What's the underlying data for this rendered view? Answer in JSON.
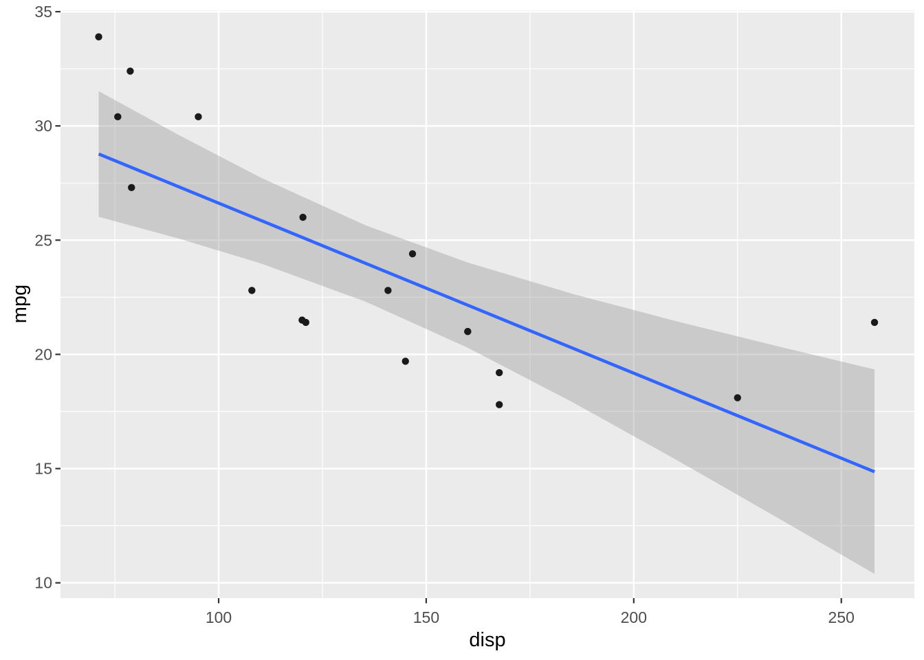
{
  "chart_data": {
    "type": "scatter",
    "title": "",
    "xlabel": "disp",
    "ylabel": "mpg",
    "grid": true,
    "legend": "none",
    "x_axis": {
      "ticks": [
        100,
        150,
        200,
        250
      ],
      "minor_ticks": [
        75,
        125,
        175,
        225
      ],
      "range": [
        61.9,
        267.6
      ]
    },
    "y_axis": {
      "ticks": [
        10,
        15,
        20,
        25,
        30,
        35
      ],
      "minor_ticks": [
        12.5,
        17.5,
        22.5,
        27.5,
        32.5
      ],
      "range": [
        9.33,
        35.06
      ]
    },
    "points": [
      [
        71.1,
        33.9
      ],
      [
        75.7,
        30.4
      ],
      [
        78.7,
        32.4
      ],
      [
        79.0,
        27.3
      ],
      [
        95.1,
        30.4
      ],
      [
        108.0,
        22.8
      ],
      [
        120.1,
        21.5
      ],
      [
        120.3,
        26.0
      ],
      [
        121.0,
        21.4
      ],
      [
        140.8,
        22.8
      ],
      [
        145.0,
        19.7
      ],
      [
        146.7,
        24.4
      ],
      [
        160.0,
        21.0
      ],
      [
        160.0,
        21.0
      ],
      [
        167.6,
        19.2
      ],
      [
        167.6,
        17.8
      ],
      [
        225.0,
        18.1
      ],
      [
        258.0,
        21.4
      ]
    ],
    "smooth": {
      "method": "lm",
      "line": [
        [
          71.1,
          28.77
        ],
        [
          258.0,
          14.86
        ]
      ],
      "ci_band": [
        [
          71.1,
          26.02,
          31.52
        ],
        [
          90.0,
          25.09,
          29.64
        ],
        [
          110.0,
          23.99,
          27.75
        ],
        [
          135.5,
          22.3,
          25.64
        ],
        [
          160.0,
          20.29,
          24.02
        ],
        [
          185.0,
          17.93,
          22.66
        ],
        [
          210.0,
          15.41,
          21.46
        ],
        [
          235.0,
          12.81,
          20.34
        ],
        [
          258.0,
          10.39,
          19.34
        ]
      ]
    },
    "colors": {
      "page_bg": "#FFFFFF",
      "panel_bg": "#EBEBEB",
      "grid": "#FFFFFF",
      "band_fill": "#999999",
      "band_opacity": "0.4",
      "line": "#3366FF",
      "point": "#1A1A1A",
      "tick_mark": "#333333",
      "tick_text": "#4D4D4D",
      "axis_title": "#000000"
    }
  }
}
